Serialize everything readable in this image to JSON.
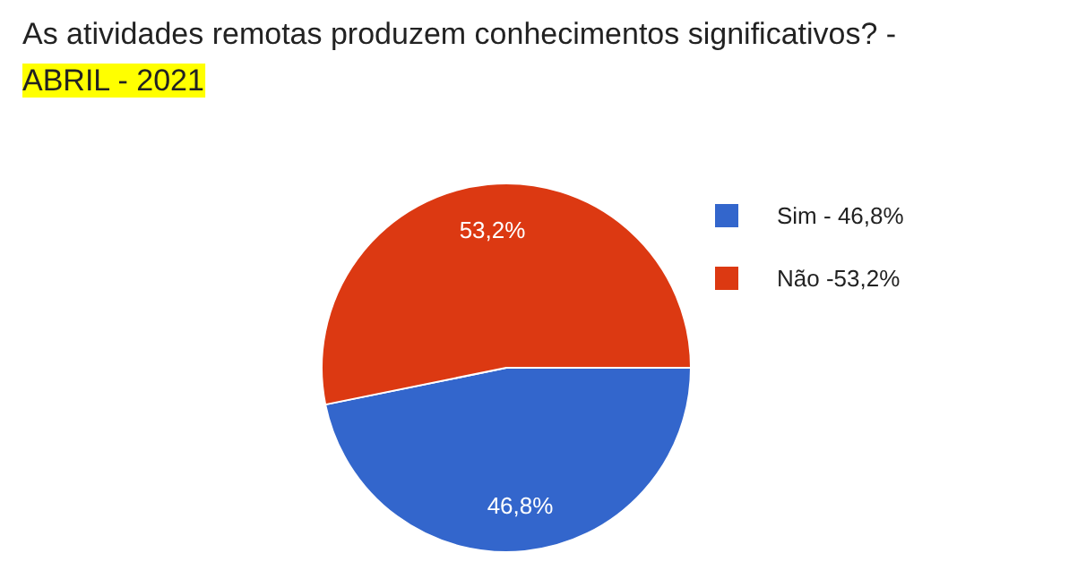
{
  "chart_data": {
    "type": "pie",
    "title": "As atividades remotas produzem conhecimentos significativos? -",
    "subtitle": "ABRIL - 2021",
    "categories": [
      "Sim - 46,8%",
      "Não -53,2%"
    ],
    "values": [
      46.8,
      53.2
    ],
    "colors": [
      "#3366cc",
      "#dc3912"
    ],
    "value_labels": [
      "46,8%",
      "53,2%"
    ],
    "legend": "right"
  }
}
